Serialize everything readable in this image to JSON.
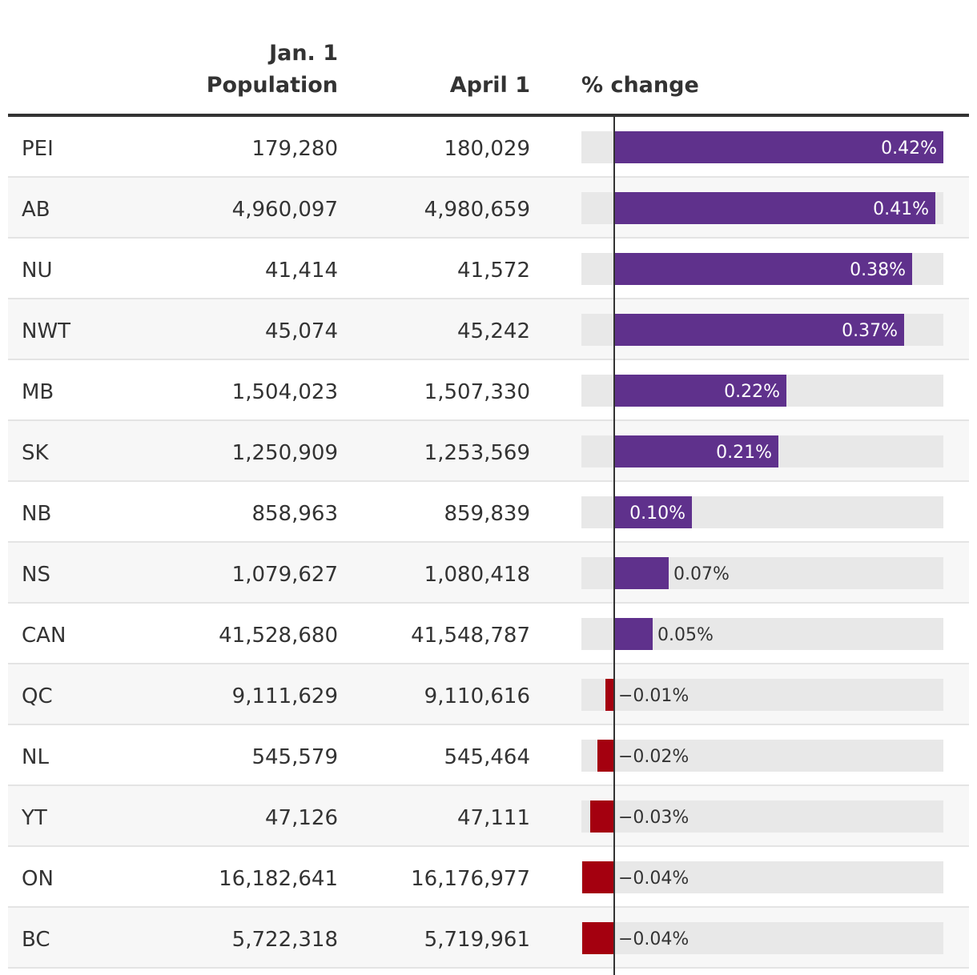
{
  "chart_data": {
    "type": "table",
    "columns": {
      "region": "",
      "jan1": [
        "Jan. 1",
        "Population"
      ],
      "apr1": "April 1",
      "pct": "% change"
    },
    "colors": {
      "positive": "#5f318c",
      "negative": "#a4000f",
      "track": "#e8e8e8"
    },
    "pct_max": 0.45,
    "rows": [
      {
        "region": "PEI",
        "jan1": "179,280",
        "apr1": "180,029",
        "pct": 0.42,
        "pct_label": "0.42%"
      },
      {
        "region": "AB",
        "jan1": "4,960,097",
        "apr1": "4,980,659",
        "pct": 0.41,
        "pct_label": "0.41%"
      },
      {
        "region": "NU",
        "jan1": "41,414",
        "apr1": "41,572",
        "pct": 0.38,
        "pct_label": "0.38%"
      },
      {
        "region": "NWT",
        "jan1": "45,074",
        "apr1": "45,242",
        "pct": 0.37,
        "pct_label": "0.37%"
      },
      {
        "region": "MB",
        "jan1": "1,504,023",
        "apr1": "1,507,330",
        "pct": 0.22,
        "pct_label": "0.22%"
      },
      {
        "region": "SK",
        "jan1": "1,250,909",
        "apr1": "1,253,569",
        "pct": 0.21,
        "pct_label": "0.21%"
      },
      {
        "region": "NB",
        "jan1": "858,963",
        "apr1": "859,839",
        "pct": 0.1,
        "pct_label": "0.10%"
      },
      {
        "region": "NS",
        "jan1": "1,079,627",
        "apr1": "1,080,418",
        "pct": 0.07,
        "pct_label": "0.07%"
      },
      {
        "region": "CAN",
        "jan1": "41,528,680",
        "apr1": "41,548,787",
        "pct": 0.05,
        "pct_label": "0.05%"
      },
      {
        "region": "QC",
        "jan1": "9,111,629",
        "apr1": "9,110,616",
        "pct": -0.01,
        "pct_label": "−0.01%"
      },
      {
        "region": "NL",
        "jan1": "545,579",
        "apr1": "545,464",
        "pct": -0.02,
        "pct_label": "−0.02%"
      },
      {
        "region": "YT",
        "jan1": "47,126",
        "apr1": "47,111",
        "pct": -0.03,
        "pct_label": "−0.03%"
      },
      {
        "region": "ON",
        "jan1": "16,182,641",
        "apr1": "16,176,977",
        "pct": -0.04,
        "pct_label": "−0.04%"
      },
      {
        "region": "BC",
        "jan1": "5,722,318",
        "apr1": "5,719,961",
        "pct": -0.04,
        "pct_label": "−0.04%"
      }
    ]
  }
}
